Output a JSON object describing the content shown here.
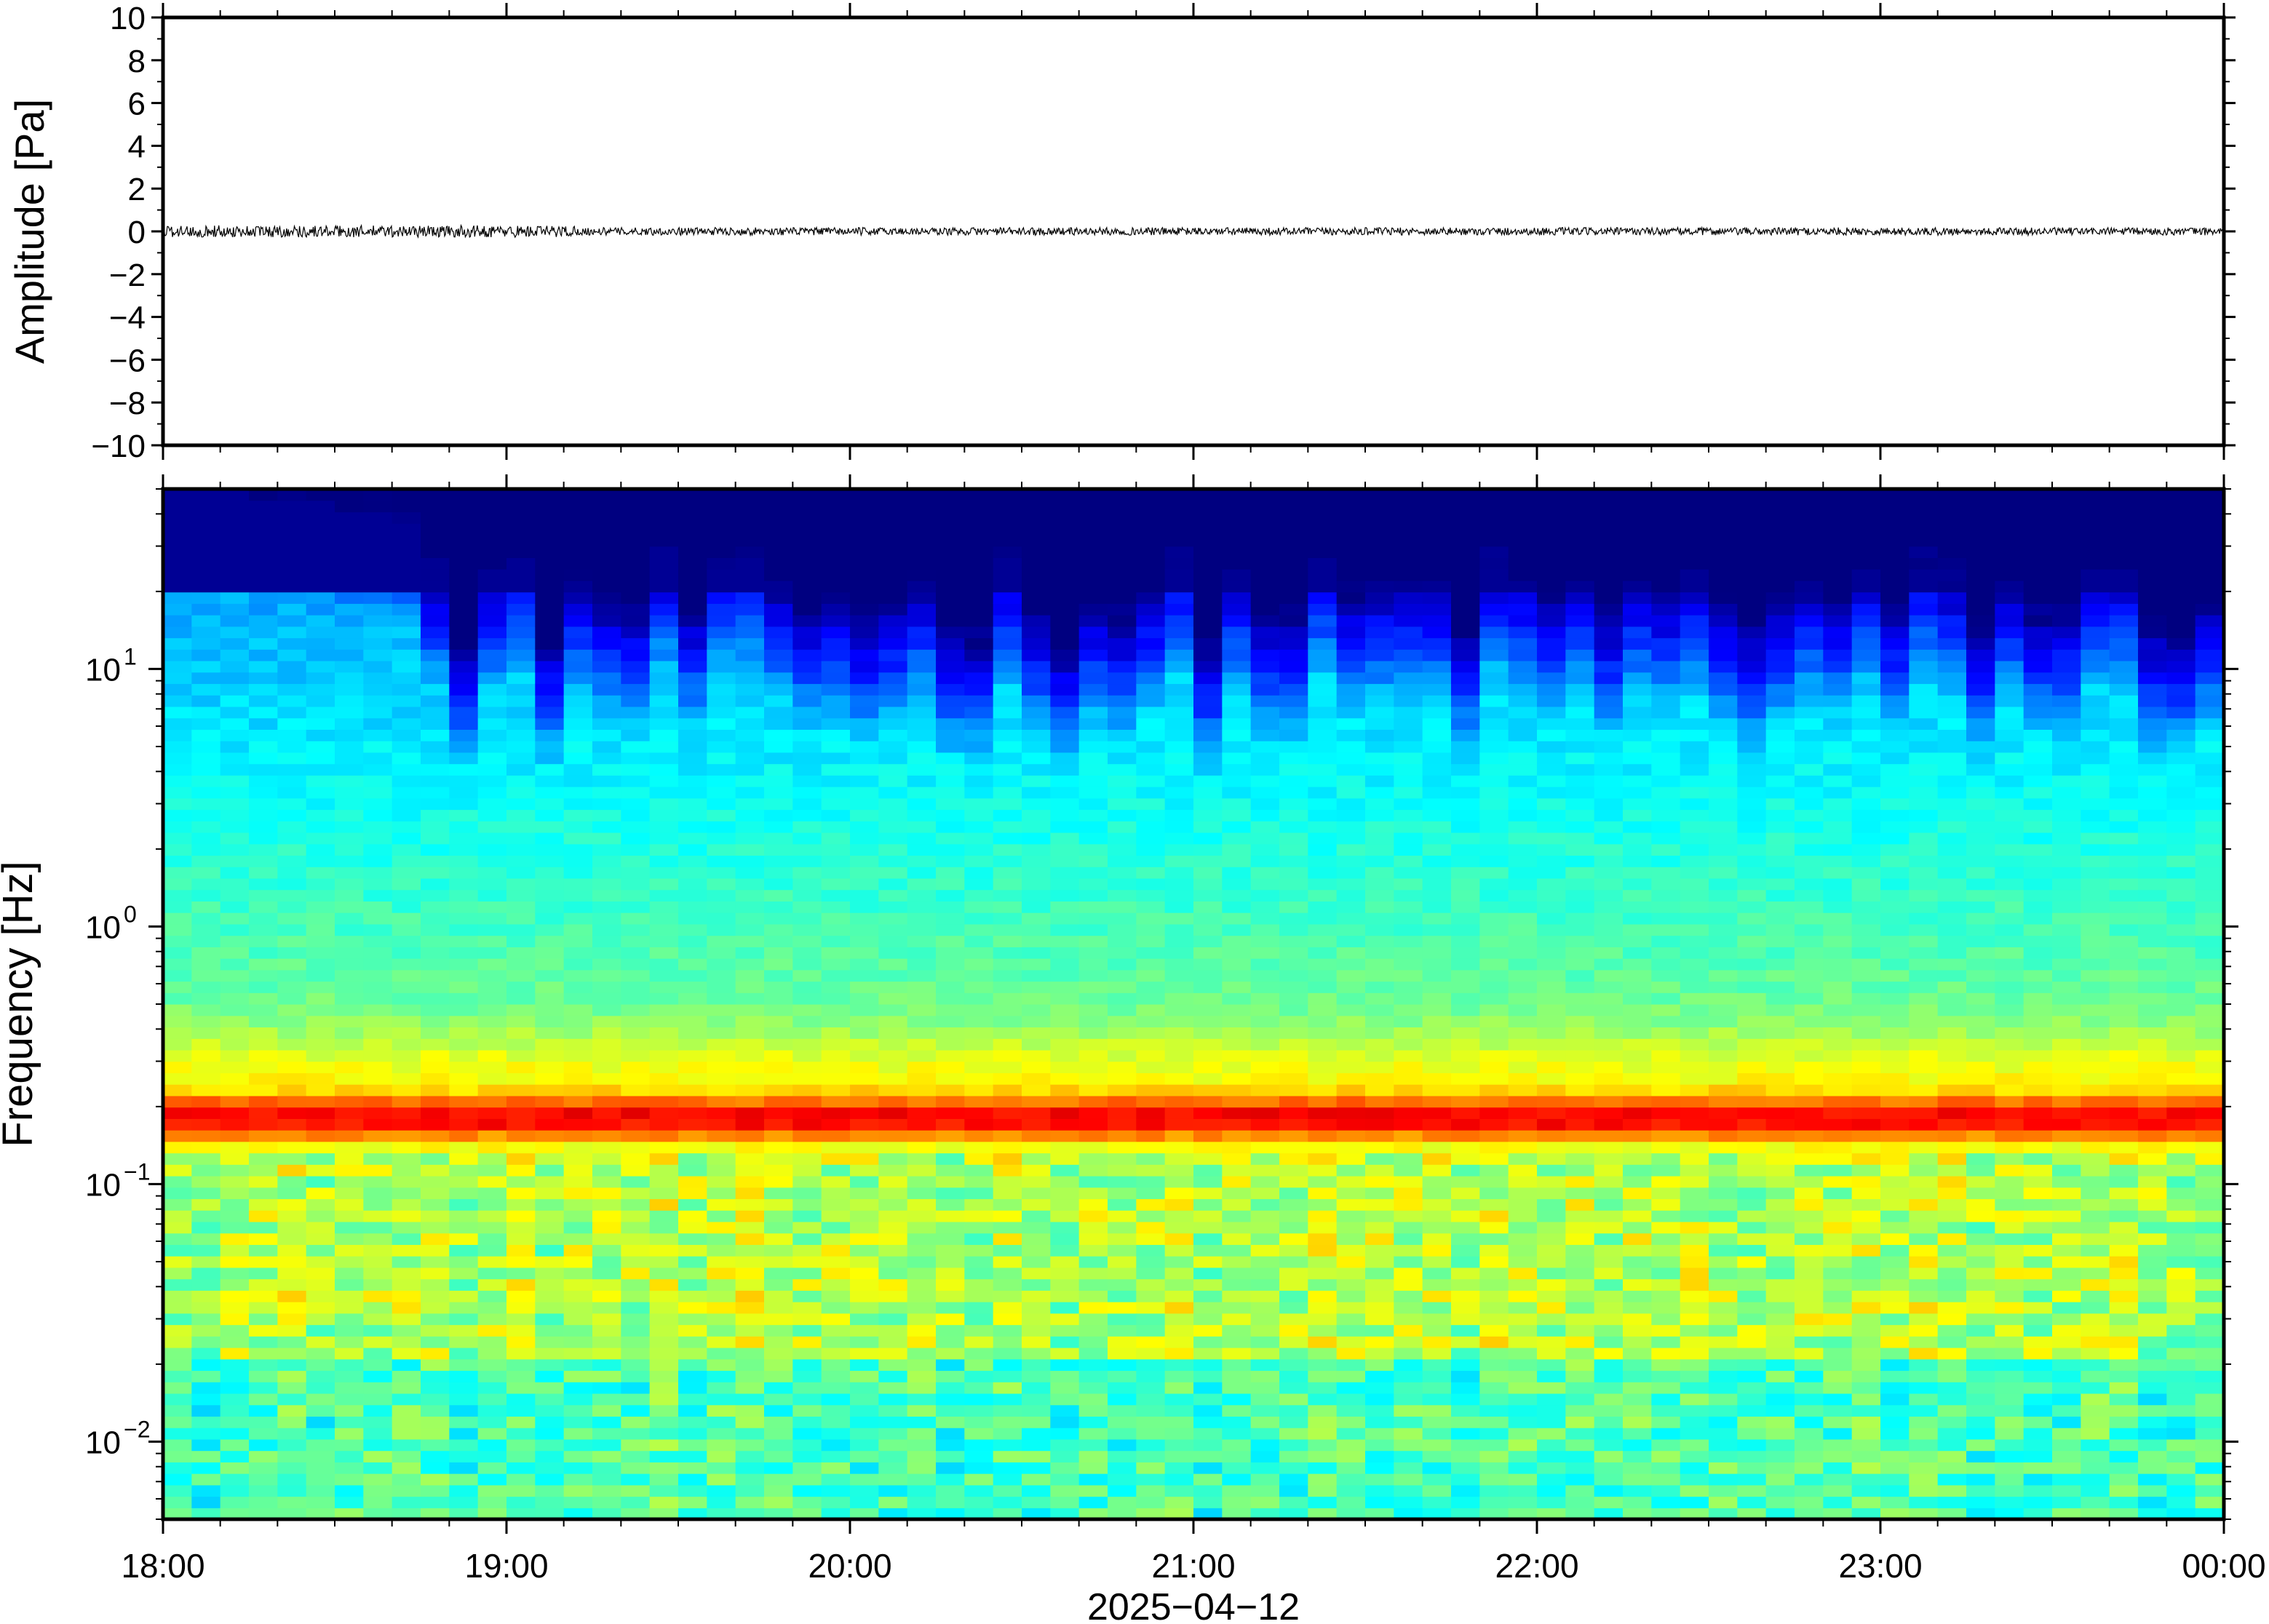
{
  "chart_data": [
    {
      "type": "line",
      "ylabel": "Amplitude [Pa]",
      "ylim": [
        -10,
        10
      ],
      "yticks": [
        "10",
        "8",
        "6",
        "4",
        "2",
        "0",
        "−2",
        "−4",
        "−6",
        "−8",
        "−10"
      ],
      "xlim": [
        "18:00",
        "00:00"
      ],
      "series": [
        {
          "values_note_amplitude_range": [
            -0.3,
            0.3
          ],
          "color": "#000000"
        }
      ]
    },
    {
      "type": "heatmap",
      "xlabel": "2025−04−12",
      "ylabel": "Frequency [Hz]",
      "yscale": "log",
      "ylim": [
        0.005,
        50
      ],
      "xticks": [
        "18:00",
        "19:00",
        "20:00",
        "21:00",
        "22:00",
        "23:00",
        "00:00"
      ],
      "ytick_labels": [
        {
          "base": "10",
          "exp": "1",
          "value": 10
        },
        {
          "base": "10",
          "exp": "0",
          "value": 1
        },
        {
          "base": "10",
          "exp": "−1",
          "value": 0.1
        },
        {
          "base": "10",
          "exp": "−2",
          "value": 0.01
        }
      ],
      "colormap": "jet",
      "features": {
        "microbarom_peak_hz": 0.18,
        "low_noise_regime_start": "18:47"
      }
    }
  ]
}
